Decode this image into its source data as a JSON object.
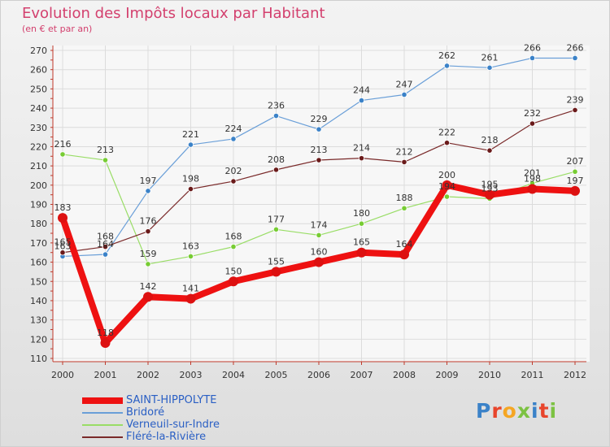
{
  "title": "Evolution des Impôts locaux par Habitant",
  "subtitle": "(en € et par an)",
  "logo": "Proxiti",
  "colors": {
    "title": "#d3406e",
    "legend_text": "#2a5fc4",
    "axis": "#c0392b",
    "tick_text": "#333333"
  },
  "chart_data": {
    "type": "line",
    "title": "Evolution des Impôts locaux par Habitant",
    "subtitle": "(en € et par an)",
    "xlabel": "",
    "ylabel": "",
    "x": [
      "2000",
      "2001",
      "2002",
      "2003",
      "2004",
      "2005",
      "2006",
      "2007",
      "2008",
      "2009",
      "2010",
      "2011",
      "2012"
    ],
    "ylim": [
      110,
      270
    ],
    "yticks": [
      110,
      120,
      130,
      140,
      150,
      160,
      170,
      180,
      190,
      200,
      210,
      220,
      230,
      240,
      250,
      260,
      270
    ],
    "grid": true,
    "legend_position": "bottom-left",
    "series": [
      {
        "name": "SAINT-HIPPOLYTE",
        "values": [
          183,
          118,
          142,
          141,
          150,
          155,
          160,
          165,
          164,
          200,
          195,
          198,
          197
        ],
        "color": "#ee1111",
        "marker": "#dd1111"
      },
      {
        "name": "Bridoré",
        "values": [
          163,
          164,
          197,
          221,
          224,
          236,
          229,
          244,
          247,
          262,
          261,
          266,
          266
        ],
        "color": "#6a9fd8",
        "marker": "#3b82c8"
      },
      {
        "name": "Verneuil-sur-Indre",
        "values": [
          216,
          213,
          159,
          163,
          168,
          177,
          174,
          180,
          188,
          194,
          193,
          201,
          207
        ],
        "color": "#99dd66",
        "marker": "#77cc33"
      },
      {
        "name": "Fléré-la-Rivière",
        "values": [
          165,
          168,
          176,
          198,
          202,
          208,
          213,
          214,
          212,
          222,
          218,
          232,
          239
        ],
        "color": "#7a2a2a",
        "marker": "#6a1a1a"
      }
    ]
  }
}
